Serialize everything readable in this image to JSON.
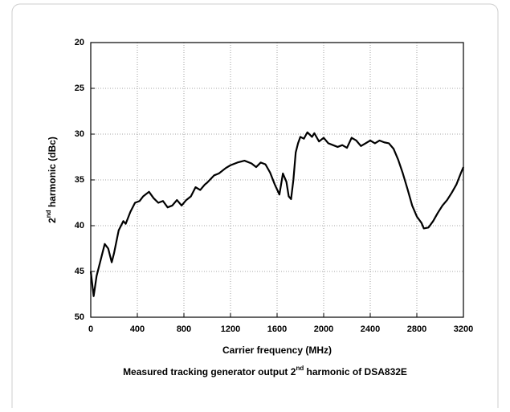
{
  "chart_data": {
    "type": "line",
    "xlabel": "Carrier frequency (MHz)",
    "ylabel": [
      "2",
      "nd",
      " harmonic (dBc)"
    ],
    "caption": [
      "Measured tracking generator output 2",
      "nd",
      " harmonic of DSA832E"
    ],
    "xlim": [
      0,
      3200
    ],
    "xticks": [
      0,
      400,
      800,
      1200,
      1600,
      2000,
      2400,
      2800,
      3200
    ],
    "ylim": [
      50,
      20
    ],
    "yticks": [
      20,
      25,
      30,
      35,
      40,
      45,
      50
    ],
    "grid": true,
    "series": [
      {
        "color": "#000000",
        "x": [
          0,
          25,
          50,
          80,
          120,
          150,
          180,
          200,
          240,
          280,
          300,
          340,
          380,
          420,
          450,
          500,
          540,
          580,
          620,
          660,
          700,
          740,
          780,
          820,
          860,
          900,
          940,
          980,
          1000,
          1060,
          1100,
          1160,
          1200,
          1260,
          1320,
          1380,
          1420,
          1460,
          1500,
          1540,
          1580,
          1620,
          1650,
          1680,
          1700,
          1720,
          1740,
          1760,
          1780,
          1800,
          1830,
          1860,
          1900,
          1920,
          1960,
          2000,
          2040,
          2080,
          2120,
          2160,
          2200,
          2240,
          2280,
          2320,
          2360,
          2400,
          2440,
          2480,
          2520,
          2560,
          2600,
          2640,
          2680,
          2720,
          2760,
          2800,
          2840,
          2860,
          2900,
          2940,
          2980,
          3020,
          3060,
          3100,
          3140,
          3180,
          3200
        ],
        "values": [
          45,
          47.7,
          45.5,
          44,
          42,
          42.5,
          44,
          43,
          40.5,
          39.5,
          39.8,
          38.5,
          37.5,
          37.3,
          36.8,
          36.3,
          37,
          37.5,
          37.3,
          38,
          37.8,
          37.2,
          37.8,
          37.2,
          36.8,
          35.8,
          36.1,
          35.5,
          35.3,
          34.5,
          34.3,
          33.7,
          33.4,
          33.1,
          32.9,
          33.2,
          33.6,
          33.1,
          33.3,
          34.2,
          35.5,
          36.6,
          34.3,
          35.2,
          36.8,
          37.1,
          35,
          32,
          31,
          30.3,
          30.5,
          29.8,
          30.3,
          29.9,
          30.8,
          30.4,
          31,
          31.2,
          31.4,
          31.2,
          31.5,
          30.4,
          30.7,
          31.3,
          31,
          30.7,
          31,
          30.7,
          30.9,
          31,
          31.6,
          32.8,
          34.3,
          36,
          37.8,
          39,
          39.7,
          40.3,
          40.2,
          39.5,
          38.6,
          37.8,
          37.2,
          36.4,
          35.5,
          34.2,
          33.6
        ]
      }
    ]
  }
}
